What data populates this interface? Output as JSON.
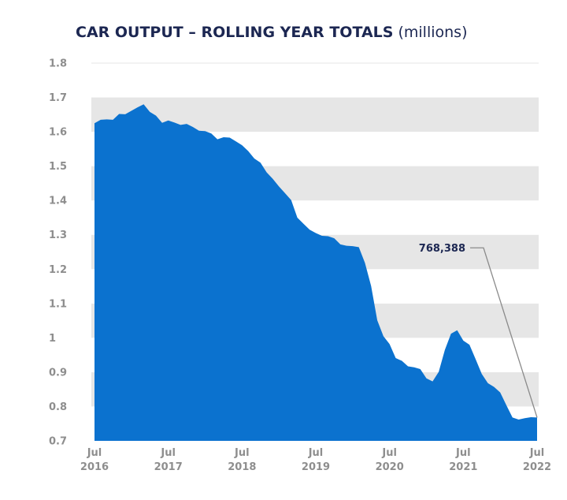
{
  "title": {
    "main": "CAR OUTPUT – ROLLING YEAR TOTALS",
    "unit": "(millions)"
  },
  "chart_data": {
    "type": "area",
    "title": "CAR OUTPUT – ROLLING YEAR TOTALS (millions)",
    "xlabel": "",
    "ylabel": "",
    "ylim": [
      0.7,
      1.8
    ],
    "y_ticks": [
      "0.7",
      "0.8",
      "0.9",
      "1",
      "1.1",
      "1.2",
      "1.3",
      "1.4",
      "1.5",
      "1.6",
      "1.7",
      "1.8"
    ],
    "x_ticks": [
      {
        "month_index": 0,
        "line1": "Jul",
        "line2": "2016"
      },
      {
        "month_index": 12,
        "line1": "Jul",
        "line2": "2017"
      },
      {
        "month_index": 24,
        "line1": "Jul",
        "line2": "2018"
      },
      {
        "month_index": 36,
        "line1": "Jul",
        "line2": "2019"
      },
      {
        "month_index": 48,
        "line1": "Jul",
        "line2": "2020"
      },
      {
        "month_index": 60,
        "line1": "Jul",
        "line2": "2021"
      },
      {
        "month_index": 72,
        "line1": "Jul",
        "line2": "2022"
      }
    ],
    "grid": true,
    "color": "#0b72cf",
    "series": [
      {
        "name": "Rolling year car output (millions)",
        "start": "Jul 2016",
        "values": [
          1.625,
          1.635,
          1.636,
          1.635,
          1.652,
          1.651,
          1.661,
          1.671,
          1.68,
          1.658,
          1.647,
          1.626,
          1.633,
          1.627,
          1.62,
          1.623,
          1.614,
          1.603,
          1.602,
          1.595,
          1.578,
          1.584,
          1.583,
          1.572,
          1.561,
          1.544,
          1.522,
          1.51,
          1.482,
          1.463,
          1.441,
          1.421,
          1.401,
          1.35,
          1.332,
          1.315,
          1.305,
          1.297,
          1.296,
          1.29,
          1.272,
          1.268,
          1.267,
          1.264,
          1.218,
          1.151,
          1.051,
          1.005,
          0.982,
          0.941,
          0.933,
          0.917,
          0.914,
          0.909,
          0.882,
          0.873,
          0.901,
          0.965,
          1.012,
          1.022,
          0.992,
          0.98,
          0.938,
          0.895,
          0.868,
          0.857,
          0.841,
          0.804,
          0.768,
          0.762,
          0.766,
          0.769,
          0.768
        ]
      }
    ],
    "annotation": {
      "label": "768,388",
      "value": 768388,
      "point": "Jul 2022"
    }
  }
}
